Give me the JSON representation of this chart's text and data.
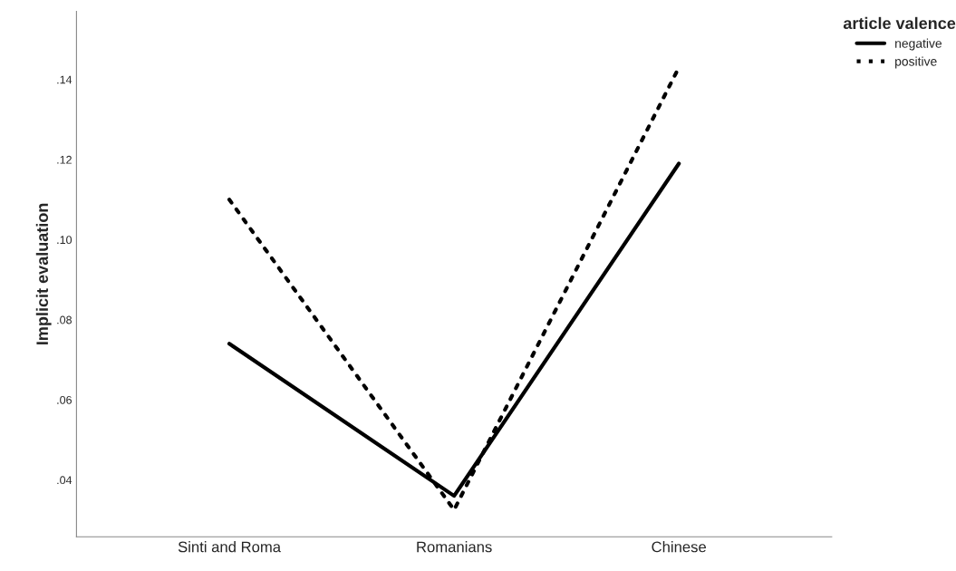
{
  "chart_data": {
    "type": "line",
    "ylabel": "Implicit evaluation",
    "legend_title": "article valence",
    "categories": [
      "Sinti and Roma",
      "Romanians",
      "Chinese"
    ],
    "series": [
      {
        "name": "negative",
        "color": "#000000",
        "line_style": "solid",
        "values": [
          0.074,
          0.036,
          0.119
        ]
      },
      {
        "name": "positive",
        "color": "#000000",
        "line_style": "dotted",
        "values": [
          0.11,
          0.0325,
          0.143
        ]
      }
    ],
    "ylim": [
      0.0258,
      0.157
    ],
    "yticks": [
      {
        "value": 0.04,
        "label": ".04"
      },
      {
        "value": 0.06,
        "label": ".06"
      },
      {
        "value": 0.08,
        "label": ".08"
      },
      {
        "value": 0.1,
        "label": ".10"
      },
      {
        "value": 0.12,
        "label": ".12"
      },
      {
        "value": 0.14,
        "label": ".14"
      }
    ],
    "grid": false,
    "legend": "top right",
    "marker": "none"
  }
}
